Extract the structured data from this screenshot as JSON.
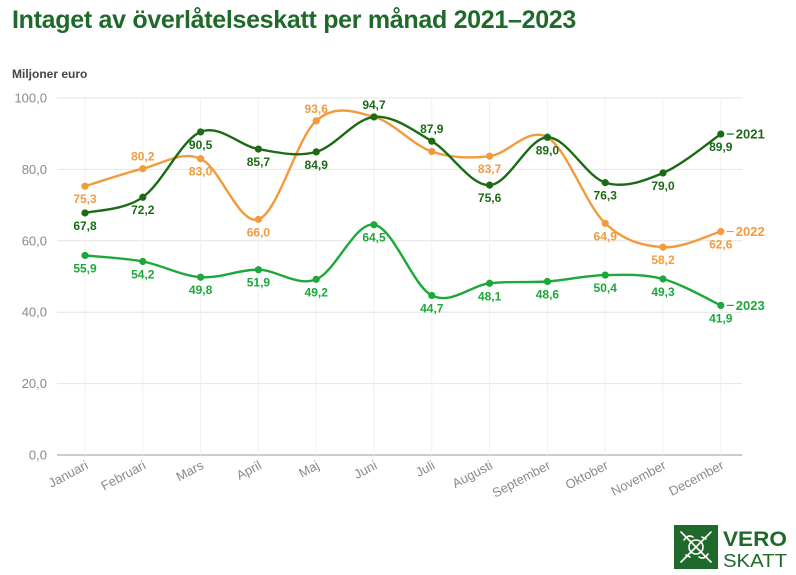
{
  "title": "Intaget av överlåtelseskatt per månad 2021–2023",
  "unit_label": "Miljoner euro",
  "logo": {
    "text_top": "VERO",
    "text_bottom": "SKATT",
    "color": "#1f6a2b"
  },
  "chart_data": {
    "type": "line",
    "title": "Intaget av överlåtelseskatt per månad 2021–2023",
    "ylabel": "Miljoner euro",
    "ylim": [
      0,
      100
    ],
    "yticks": [
      "0,0",
      "20,0",
      "40,0",
      "60,0",
      "80,0",
      "100,0"
    ],
    "grid": true,
    "categories": [
      "Januari",
      "Februari",
      "Mars",
      "April",
      "Maj",
      "Juni",
      "Juli",
      "Augusti",
      "September",
      "Oktober",
      "November",
      "December"
    ],
    "series": [
      {
        "name": "2021",
        "color": "#1a6b14",
        "values": [
          67.8,
          72.2,
          90.5,
          85.7,
          84.9,
          94.7,
          87.9,
          75.6,
          89.0,
          76.3,
          79.0,
          89.9
        ],
        "labels": [
          "67,8",
          "72,2",
          "90,5",
          "85,7",
          "84,9",
          "94,7",
          "87,9",
          "75,6",
          "89,0",
          "76,3",
          "79,0",
          "89,9"
        ]
      },
      {
        "name": "2022",
        "color": "#f29b3c",
        "values": [
          75.3,
          80.2,
          83.0,
          66.0,
          93.6,
          94.7,
          85.0,
          83.7,
          89.0,
          64.9,
          58.2,
          62.6
        ],
        "labels": [
          "75,3",
          "80,2",
          "83,0",
          "66,0",
          "93,6",
          "",
          "",
          "83,7",
          "",
          "64,9",
          "58,2",
          "62,6"
        ]
      },
      {
        "name": "2023",
        "color": "#1ca83a",
        "values": [
          55.9,
          54.2,
          49.8,
          51.9,
          49.2,
          64.5,
          44.7,
          48.1,
          48.6,
          50.4,
          49.3,
          41.9
        ],
        "labels": [
          "55,9",
          "54,2",
          "49,8",
          "51,9",
          "49,2",
          "64,5",
          "44,7",
          "48,1",
          "48,6",
          "50,4",
          "49,3",
          "41,9"
        ]
      }
    ]
  }
}
